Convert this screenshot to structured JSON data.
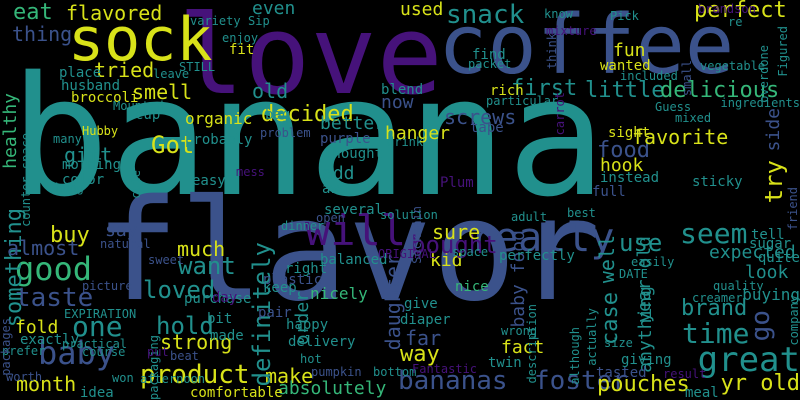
{
  "palette": {
    "purple": "#46127a",
    "blue": "#3b528b",
    "teal": "#21908d",
    "green": "#35b779",
    "yellow": "#d8e219",
    "bg": "#000000"
  },
  "words": [
    {
      "text": "banana",
      "color": "teal"
    },
    {
      "text": "flavor",
      "color": "blue"
    },
    {
      "text": "love",
      "color": "purple"
    },
    {
      "text": "coffee",
      "color": "blue"
    },
    {
      "text": "sock",
      "color": "yellow"
    },
    {
      "text": "will",
      "color": "purple"
    },
    {
      "text": "really",
      "color": "blue"
    },
    {
      "text": "good",
      "color": "green"
    },
    {
      "text": "taste",
      "color": "blue"
    },
    {
      "text": "baby",
      "color": "blue"
    },
    {
      "text": "great",
      "color": "teal"
    },
    {
      "text": "product",
      "color": "yellow"
    },
    {
      "text": "bananas",
      "color": "blue"
    },
    {
      "text": "foster",
      "color": "blue"
    },
    {
      "text": "pouches",
      "color": "yellow"
    },
    {
      "text": "time",
      "color": "teal"
    },
    {
      "text": "seem",
      "color": "teal"
    },
    {
      "text": "use",
      "color": "teal"
    },
    {
      "text": "one",
      "color": "teal"
    },
    {
      "text": "hold",
      "color": "teal"
    },
    {
      "text": "loved",
      "color": "teal"
    },
    {
      "text": "want",
      "color": "teal"
    },
    {
      "text": "snack",
      "color": "teal"
    },
    {
      "text": "first",
      "color": "teal"
    },
    {
      "text": "little",
      "color": "teal"
    },
    {
      "text": "delicious",
      "color": "green"
    },
    {
      "text": "perfect",
      "color": "yellow"
    },
    {
      "text": "fact",
      "color": "yellow"
    },
    {
      "text": "way",
      "color": "yellow"
    },
    {
      "text": "kid",
      "color": "yellow"
    },
    {
      "text": "brand",
      "color": "teal"
    },
    {
      "text": "go",
      "color": "blue"
    },
    {
      "text": "yr old",
      "color": "yellow"
    },
    {
      "text": "month",
      "color": "yellow"
    },
    {
      "text": "make",
      "color": "yellow"
    },
    {
      "text": "definitely",
      "color": "teal"
    },
    {
      "text": "bought",
      "color": "purple"
    },
    {
      "text": "sure",
      "color": "yellow"
    },
    {
      "text": "daughter",
      "color": "blue"
    },
    {
      "text": "baby food",
      "color": "blue"
    },
    {
      "text": "food",
      "color": "blue"
    },
    {
      "text": "well",
      "color": "teal"
    },
    {
      "text": "favorite",
      "color": "yellow"
    },
    {
      "text": "hanger",
      "color": "yellow"
    },
    {
      "text": "screws",
      "color": "blue"
    },
    {
      "text": "decided",
      "color": "yellow"
    },
    {
      "text": "old",
      "color": "teal"
    },
    {
      "text": "smell",
      "color": "yellow"
    },
    {
      "text": "tried",
      "color": "yellow"
    },
    {
      "text": "flavored",
      "color": "yellow"
    },
    {
      "text": "eat",
      "color": "green"
    },
    {
      "text": "thing",
      "color": "blue"
    },
    {
      "text": "healthy",
      "color": "green"
    },
    {
      "text": "something",
      "color": "teal"
    },
    {
      "text": "Got",
      "color": "yellow"
    },
    {
      "text": "gift",
      "color": "teal"
    },
    {
      "text": "buy",
      "color": "yellow"
    },
    {
      "text": "say",
      "color": "blue"
    },
    {
      "text": "almost",
      "color": "blue"
    },
    {
      "text": "much",
      "color": "yellow"
    },
    {
      "text": "fold",
      "color": "yellow"
    },
    {
      "text": "strong",
      "color": "yellow"
    },
    {
      "text": "nicely",
      "color": "green"
    },
    {
      "text": "far",
      "color": "blue"
    },
    {
      "text": "order",
      "color": "teal"
    },
    {
      "text": "absolutely",
      "color": "green"
    },
    {
      "text": "look",
      "color": "teal"
    },
    {
      "text": "expected",
      "color": "teal"
    },
    {
      "text": "anything",
      "color": "teal"
    },
    {
      "text": "case",
      "color": "teal"
    },
    {
      "text": "year old",
      "color": "teal"
    },
    {
      "text": "hook",
      "color": "yellow"
    },
    {
      "text": "try",
      "color": "yellow"
    },
    {
      "text": "side",
      "color": "blue"
    },
    {
      "text": "fun",
      "color": "yellow"
    },
    {
      "text": "wanted",
      "color": "yellow"
    },
    {
      "text": "now",
      "color": "blue"
    },
    {
      "text": "better",
      "color": "teal"
    },
    {
      "text": "used",
      "color": "yellow"
    },
    {
      "text": "even",
      "color": "teal"
    },
    {
      "text": "add",
      "color": "teal"
    },
    {
      "text": "away",
      "color": "teal"
    },
    {
      "text": "buying",
      "color": "teal"
    },
    {
      "text": "organic",
      "color": "yellow"
    },
    {
      "text": "probably",
      "color": "teal"
    },
    {
      "text": "color",
      "color": "teal"
    },
    {
      "text": "morning",
      "color": "teal"
    },
    {
      "text": "easy",
      "color": "teal"
    },
    {
      "text": "thought",
      "color": "teal"
    },
    {
      "text": "several",
      "color": "teal"
    },
    {
      "text": "broccoli",
      "color": "yellow"
    },
    {
      "text": "husband",
      "color": "teal"
    },
    {
      "text": "place",
      "color": "teal"
    },
    {
      "text": "fit",
      "color": "yellow"
    },
    {
      "text": "find",
      "color": "teal"
    },
    {
      "text": "blend",
      "color": "teal"
    },
    {
      "text": "rich",
      "color": "yellow"
    },
    {
      "text": "bag",
      "color": "teal"
    },
    {
      "text": "cup",
      "color": "teal"
    },
    {
      "text": "sticky",
      "color": "teal"
    },
    {
      "text": "full",
      "color": "blue"
    },
    {
      "text": "instead",
      "color": "teal"
    },
    {
      "text": "sight",
      "color": "yellow"
    },
    {
      "text": "tape",
      "color": "blue"
    },
    {
      "text": "Plum",
      "color": "purple"
    },
    {
      "text": "purple",
      "color": "blue"
    },
    {
      "text": "give",
      "color": "teal"
    },
    {
      "text": "diaper",
      "color": "teal"
    },
    {
      "text": "delivery",
      "color": "teal"
    },
    {
      "text": "plastic",
      "color": "blue"
    },
    {
      "text": "balanced",
      "color": "teal"
    },
    {
      "text": "right",
      "color": "teal"
    },
    {
      "text": "keep",
      "color": "teal"
    },
    {
      "text": "nice",
      "color": "green"
    },
    {
      "text": "perfectly",
      "color": "teal"
    },
    {
      "text": "tell",
      "color": "teal"
    },
    {
      "text": "sugar",
      "color": "teal"
    },
    {
      "text": "quite",
      "color": "teal"
    },
    {
      "text": "made",
      "color": "teal"
    },
    {
      "text": "bit",
      "color": "teal"
    },
    {
      "text": "purchase",
      "color": "teal"
    },
    {
      "text": "day",
      "color": "purple"
    },
    {
      "text": "pair",
      "color": "blue"
    },
    {
      "text": "happy",
      "color": "teal"
    },
    {
      "text": "twin",
      "color": "teal"
    },
    {
      "text": "giving",
      "color": "teal"
    },
    {
      "text": "tasted",
      "color": "blue"
    },
    {
      "text": "meal",
      "color": "teal"
    },
    {
      "text": "comfortable",
      "color": "yellow"
    },
    {
      "text": "idea",
      "color": "teal"
    },
    {
      "text": "won",
      "color": "teal"
    },
    {
      "text": "worth",
      "color": "blue"
    },
    {
      "text": "course",
      "color": "teal"
    },
    {
      "text": "practical",
      "color": "teal"
    },
    {
      "text": "exactly",
      "color": "teal"
    },
    {
      "text": "prefer",
      "color": "teal"
    },
    {
      "text": "packages",
      "color": "blue"
    },
    {
      "text": "Mounted",
      "color": "teal"
    },
    {
      "text": "Hubby",
      "color": "yellow"
    },
    {
      "text": "counter space",
      "color": "teal"
    },
    {
      "text": "packaging",
      "color": "teal"
    },
    {
      "text": "cute",
      "color": "teal"
    },
    {
      "text": "natural",
      "color": "blue"
    },
    {
      "text": "sweet",
      "color": "blue"
    },
    {
      "text": "picture",
      "color": "blue"
    },
    {
      "text": "EXPIRATION",
      "color": "teal"
    },
    {
      "text": "afternoon",
      "color": "teal"
    },
    {
      "text": "beat",
      "color": "blue"
    },
    {
      "text": "put",
      "color": "purple"
    },
    {
      "text": "hot",
      "color": "teal"
    },
    {
      "text": "pumpkin",
      "color": "blue"
    },
    {
      "text": "bottom",
      "color": "teal"
    },
    {
      "text": "Fantastic",
      "color": "purple"
    },
    {
      "text": "wrong",
      "color": "teal"
    },
    {
      "text": "description",
      "color": "teal"
    },
    {
      "text": "although",
      "color": "teal"
    },
    {
      "text": "actually",
      "color": "teal"
    },
    {
      "text": "size",
      "color": "teal"
    },
    {
      "text": "result",
      "color": "purple"
    },
    {
      "text": "quality",
      "color": "teal"
    },
    {
      "text": "creamer",
      "color": "teal"
    },
    {
      "text": "company",
      "color": "teal"
    },
    {
      "text": "adult",
      "color": "teal"
    },
    {
      "text": "best",
      "color": "teal"
    },
    {
      "text": "easily",
      "color": "teal"
    },
    {
      "text": "DATE",
      "color": "teal"
    },
    {
      "text": "friend",
      "color": "blue"
    },
    {
      "text": "dinner",
      "color": "teal"
    },
    {
      "text": "open",
      "color": "blue"
    },
    {
      "text": "solution",
      "color": "teal"
    },
    {
      "text": "drink",
      "color": "teal"
    },
    {
      "text": "ORIGINAL",
      "color": "purple"
    },
    {
      "text": "Sockmain",
      "color": "blue"
    },
    {
      "text": "space",
      "color": "teal"
    },
    {
      "text": "hung",
      "color": "teal"
    },
    {
      "text": "mess",
      "color": "purple"
    },
    {
      "text": "many",
      "color": "teal"
    },
    {
      "text": "problem",
      "color": "blue"
    },
    {
      "text": "STILL",
      "color": "teal"
    },
    {
      "text": "leave",
      "color": "teal"
    },
    {
      "text": "enjoy",
      "color": "teal"
    },
    {
      "text": "Sip",
      "color": "teal"
    },
    {
      "text": "variety",
      "color": "teal"
    },
    {
      "text": "packet",
      "color": "teal"
    },
    {
      "text": "know",
      "color": "teal"
    },
    {
      "text": "Pick",
      "color": "teal"
    },
    {
      "text": "brandson",
      "color": "purple"
    },
    {
      "text": "re",
      "color": "teal"
    },
    {
      "text": "mixture",
      "color": "purple"
    },
    {
      "text": "think",
      "color": "blue"
    },
    {
      "text": "particular",
      "color": "teal"
    },
    {
      "text": "carrot",
      "color": "purple"
    },
    {
      "text": "included",
      "color": "teal"
    },
    {
      "text": "Guess",
      "color": "teal"
    },
    {
      "text": "mixed",
      "color": "teal"
    },
    {
      "text": "vegetable",
      "color": "teal"
    },
    {
      "text": "small",
      "color": "blue"
    },
    {
      "text": "overdone",
      "color": "teal"
    },
    {
      "text": "ingredients",
      "color": "teal"
    },
    {
      "text": "Figured",
      "color": "teal"
    }
  ]
}
